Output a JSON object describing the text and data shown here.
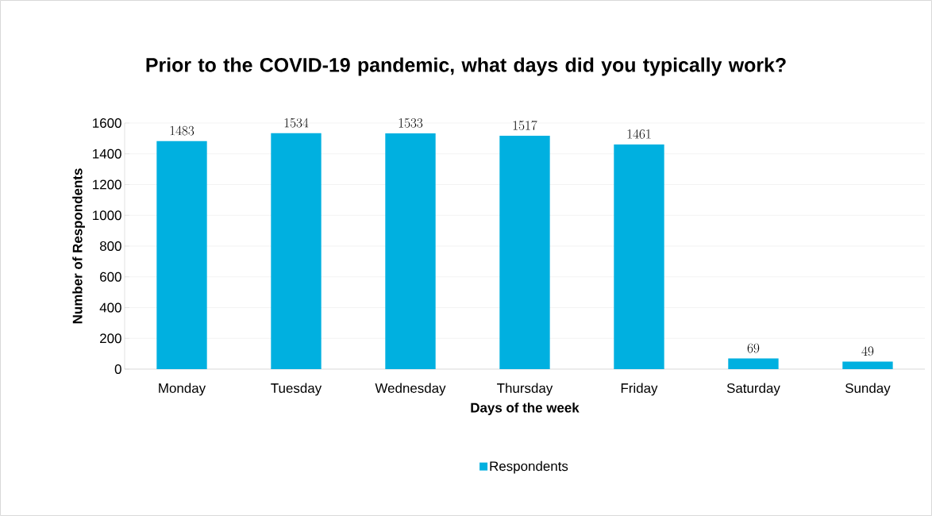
{
  "chart_data": {
    "type": "bar",
    "title": "Prior to the COVID-19 pandemic, what days did you typically work?",
    "xlabel": "Days of the week",
    "ylabel": "Number of Respondents",
    "categories": [
      "Monday",
      "Tuesday",
      "Wednesday",
      "Thursday",
      "Friday",
      "Saturday",
      "Sunday"
    ],
    "series": [
      {
        "name": "Respondents",
        "color": "#00b0e0",
        "values": [
          1483,
          1534,
          1533,
          1517,
          1461,
          69,
          49
        ]
      }
    ],
    "ylim": [
      0,
      1600
    ],
    "yticks": [
      0,
      200,
      400,
      600,
      800,
      1000,
      1200,
      1400,
      1600
    ],
    "grid": "y",
    "legend": "bottom",
    "data_labels": true
  }
}
